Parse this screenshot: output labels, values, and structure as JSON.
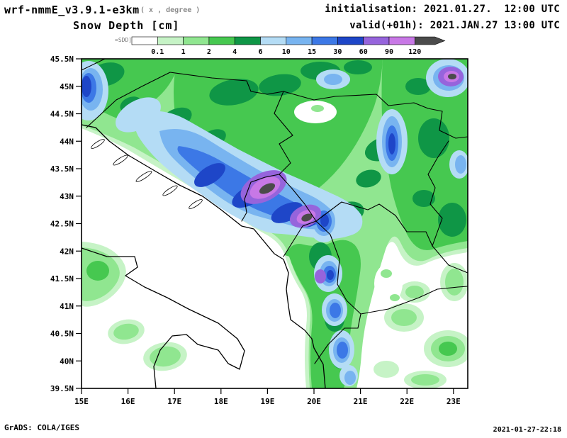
{
  "header": {
    "model": "wrf-nmmE_v3.9.1-e3km",
    "model_suffix": "( x , degree )",
    "init_label": "initialisation: 2021.01.27.  12:00 UTC",
    "title": "Snow Depth [cm]",
    "valid_label": "valid(+01h): 2021.JAN.27 13:00 UTC"
  },
  "legend": {
    "prefix": "=SDD]",
    "labels": [
      "0.1",
      "1",
      "2",
      "4",
      "6",
      "10",
      "15",
      "30",
      "60",
      "90",
      "120"
    ],
    "colors": [
      "#ffffff",
      "#c6f3c6",
      "#90e690",
      "#46c850",
      "#0f9646",
      "#b4dcf5",
      "#78b4f0",
      "#3c78e6",
      "#1e46c8",
      "#9664dc",
      "#c878e6",
      "#4b4b4b"
    ]
  },
  "axes": {
    "y_labels": [
      "45.5N",
      "45N",
      "44.5N",
      "44N",
      "43.5N",
      "43N",
      "42.5N",
      "42N",
      "41.5N",
      "41N",
      "40.5N",
      "40N",
      "39.5N"
    ],
    "x_labels": [
      "15E",
      "16E",
      "17E",
      "18E",
      "19E",
      "20E",
      "21E",
      "22E",
      "23E"
    ]
  },
  "footer": {
    "left": "GrADS: COLA/IGES",
    "right": "2021-01-27-22:18"
  },
  "chart_data": {
    "type": "heatmap",
    "title": "Snow Depth [cm]",
    "units": "cm",
    "model": "wrf-nmmE_v3.9.1-e3km",
    "initialisation": "2021.01.27. 12:00 UTC",
    "valid": "2021.JAN.27 13:00 UTC",
    "forecast_hour": "+01h",
    "x_ticks": [
      "15E",
      "16E",
      "17E",
      "18E",
      "19E",
      "20E",
      "21E",
      "22E",
      "23E"
    ],
    "y_ticks": [
      "45.5N",
      "45N",
      "44.5N",
      "44N",
      "43.5N",
      "43N",
      "42.5N",
      "42N",
      "41.5N",
      "41N",
      "40.5N",
      "40N",
      "39.5N"
    ],
    "xlim_deg_east": [
      15,
      23.3
    ],
    "ylim_deg_north": [
      39.5,
      45.5
    ],
    "contour_levels_cm": [
      0.1,
      1,
      2,
      4,
      6,
      10,
      15,
      30,
      60,
      90,
      120
    ],
    "palette": [
      "#ffffff",
      "#c6f3c6",
      "#90e690",
      "#46c850",
      "#0f9646",
      "#b4dcf5",
      "#78b4f0",
      "#3c78e6",
      "#1e46c8",
      "#9664dc",
      "#c878e6",
      "#4b4b4b"
    ],
    "legend_position": "top",
    "grid": false,
    "notable_maxima": [
      {
        "lon_e": 18.9,
        "lat_n": 43.1,
        "value_cm": ">120"
      },
      {
        "lon_e": 19.8,
        "lat_n": 42.6,
        "value_cm": ">120"
      },
      {
        "lon_e": 22.8,
        "lat_n": 45.2,
        "value_cm": ">120"
      }
    ]
  }
}
